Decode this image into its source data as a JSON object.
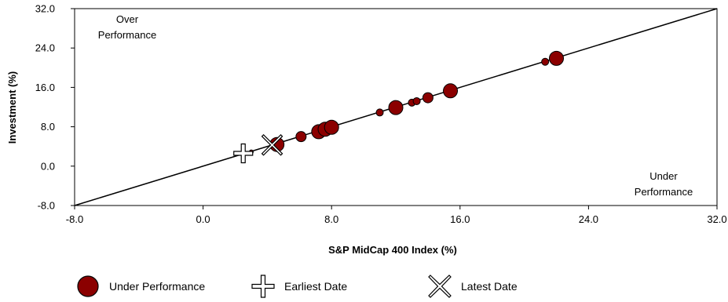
{
  "chart_data": {
    "type": "scatter",
    "xlabel": "S&P MidCap 400 Index (%)",
    "ylabel": "Investment (%)",
    "xlim": [
      -8,
      32
    ],
    "ylim": [
      -8,
      32
    ],
    "x_ticks": [
      "-8.0",
      "0.0",
      "8.0",
      "16.0",
      "24.0",
      "32.0"
    ],
    "y_ticks": [
      "-8.0",
      "0.0",
      "8.0",
      "16.0",
      "24.0",
      "32.0"
    ],
    "grid": false,
    "reference_line": {
      "from": [
        -8,
        -8
      ],
      "to": [
        32,
        32
      ]
    },
    "annotations": {
      "over": [
        "Over",
        "Performance"
      ],
      "under": [
        "Under",
        "Performance"
      ]
    },
    "series": [
      {
        "name": "Under Performance",
        "color": "#8b0000",
        "marker": "circle",
        "points": [
          {
            "x": 4.6,
            "y": 4.4,
            "size": "large"
          },
          {
            "x": 6.1,
            "y": 6.0,
            "size": "medium"
          },
          {
            "x": 7.2,
            "y": 7.0,
            "size": "large"
          },
          {
            "x": 7.6,
            "y": 7.5,
            "size": "large"
          },
          {
            "x": 8.0,
            "y": 7.9,
            "size": "large"
          },
          {
            "x": 11.0,
            "y": 10.9,
            "size": "small"
          },
          {
            "x": 12.0,
            "y": 11.9,
            "size": "large"
          },
          {
            "x": 13.0,
            "y": 12.9,
            "size": "small"
          },
          {
            "x": 13.3,
            "y": 13.2,
            "size": "small"
          },
          {
            "x": 14.0,
            "y": 13.9,
            "size": "medium"
          },
          {
            "x": 15.4,
            "y": 15.3,
            "size": "large"
          },
          {
            "x": 21.3,
            "y": 21.2,
            "size": "small"
          },
          {
            "x": 22.0,
            "y": 21.9,
            "size": "large"
          },
          {
            "x": 3.0,
            "y": 2.9,
            "size": "tiny"
          }
        ]
      },
      {
        "name": "Earliest Date",
        "marker": "cross",
        "points": [
          {
            "x": 2.5,
            "y": 2.6
          }
        ]
      },
      {
        "name": "Latest Date",
        "marker": "x",
        "points": [
          {
            "x": 4.3,
            "y": 4.3
          }
        ]
      }
    ]
  }
}
